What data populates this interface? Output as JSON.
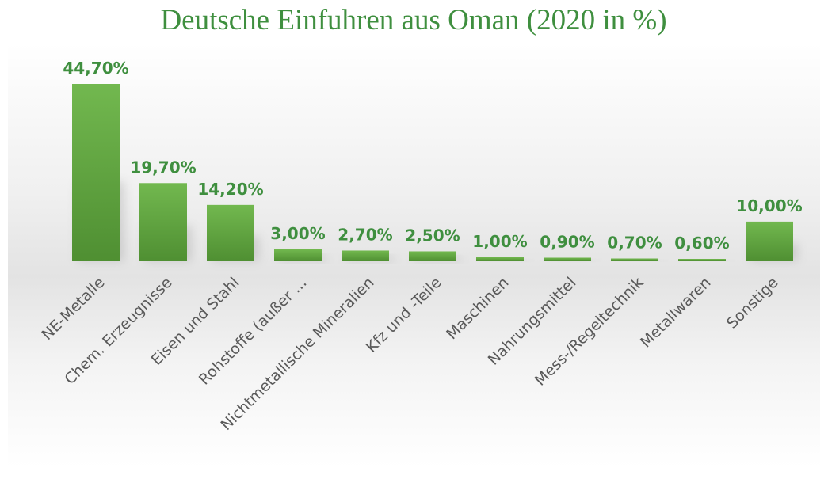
{
  "chart_data": {
    "type": "bar",
    "title": "Deutsche Einfuhren aus Oman (2020 in %)",
    "categories": [
      "NE-Metalle",
      "Chem. Erzeugnisse",
      "Eisen und Stahl",
      "Rohstoffe (außer ...",
      "Nichtmetallische Mineralien",
      "Kfz und -Teile",
      "Maschinen",
      "Nahrungsmittel",
      "Mess-/Regeltechnik",
      "Metallwaren",
      "Sonstige"
    ],
    "values": [
      44.7,
      19.7,
      14.2,
      3.0,
      2.7,
      2.5,
      1.0,
      0.9,
      0.7,
      0.6,
      10.0
    ],
    "data_labels": [
      "44,70%",
      "19,70%",
      "14,20%",
      "3,00%",
      "2,70%",
      "2,50%",
      "1,00%",
      "0,90%",
      "0,70%",
      "0,60%",
      "10,00%"
    ],
    "ylim": [
      0,
      44.7
    ],
    "grid": false,
    "legend": "none",
    "colors": {
      "bar_top": "#72b84f",
      "bar_bottom": "#4f8f32",
      "title": "#3f8f3f",
      "data_label": "#3f8f3f",
      "category_label": "#595959"
    }
  }
}
